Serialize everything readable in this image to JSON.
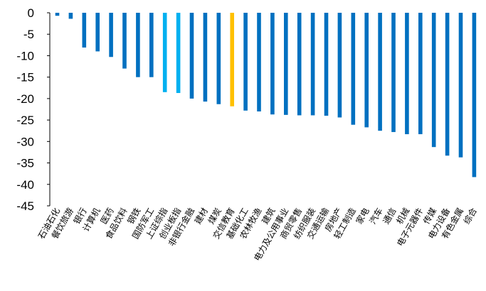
{
  "chart_data": {
    "type": "bar",
    "categories": [
      "石油石化",
      "餐饮旅游",
      "银行",
      "计算机",
      "医药",
      "食品饮料",
      "钢铁",
      "国防军工",
      "上证综指",
      "创业板指",
      "非银行金融",
      "建材",
      "煤炭",
      "交信教育",
      "基础化工",
      "农林牧渔",
      "建筑",
      "电力及公用事业",
      "商贸零售",
      "纺织服装",
      "交通运输",
      "房地产",
      "轻工制造",
      "家电",
      "汽车",
      "通信",
      "机械",
      "电子元器件",
      "传媒",
      "电力设备",
      "有色金属",
      "综合"
    ],
    "values": [
      -0.7,
      -1.4,
      -8.1,
      -9.0,
      -10.3,
      -13.0,
      -15.0,
      -15.0,
      -18.5,
      -18.7,
      -20.0,
      -20.7,
      -21.3,
      -21.8,
      -22.8,
      -23.0,
      -23.7,
      -23.8,
      -23.9,
      -23.9,
      -24.0,
      -24.4,
      -26.1,
      -26.7,
      -27.5,
      -27.8,
      -28.3,
      -28.3,
      -31.3,
      -33.3,
      -33.7,
      -38.3
    ],
    "colors": [
      "#0070c0",
      "#0070c0",
      "#0070c0",
      "#0070c0",
      "#0070c0",
      "#0070c0",
      "#0070c0",
      "#0070c0",
      "#00b0f0",
      "#00b0f0",
      "#0070c0",
      "#0070c0",
      "#0070c0",
      "#ffc000",
      "#0070c0",
      "#0070c0",
      "#0070c0",
      "#0070c0",
      "#0070c0",
      "#0070c0",
      "#0070c0",
      "#0070c0",
      "#0070c0",
      "#0070c0",
      "#0070c0",
      "#0070c0",
      "#0070c0",
      "#0070c0",
      "#0070c0",
      "#0070c0",
      "#0070c0",
      "#0070c0"
    ],
    "yticks": [
      "0",
      "-5",
      "-10",
      "-15",
      "-20",
      "-25",
      "-30",
      "-35",
      "-40",
      "-45"
    ],
    "ylim": [
      -45,
      0
    ],
    "grid": false,
    "legend": "none",
    "title": "",
    "xlabel": "",
    "ylabel": ""
  }
}
